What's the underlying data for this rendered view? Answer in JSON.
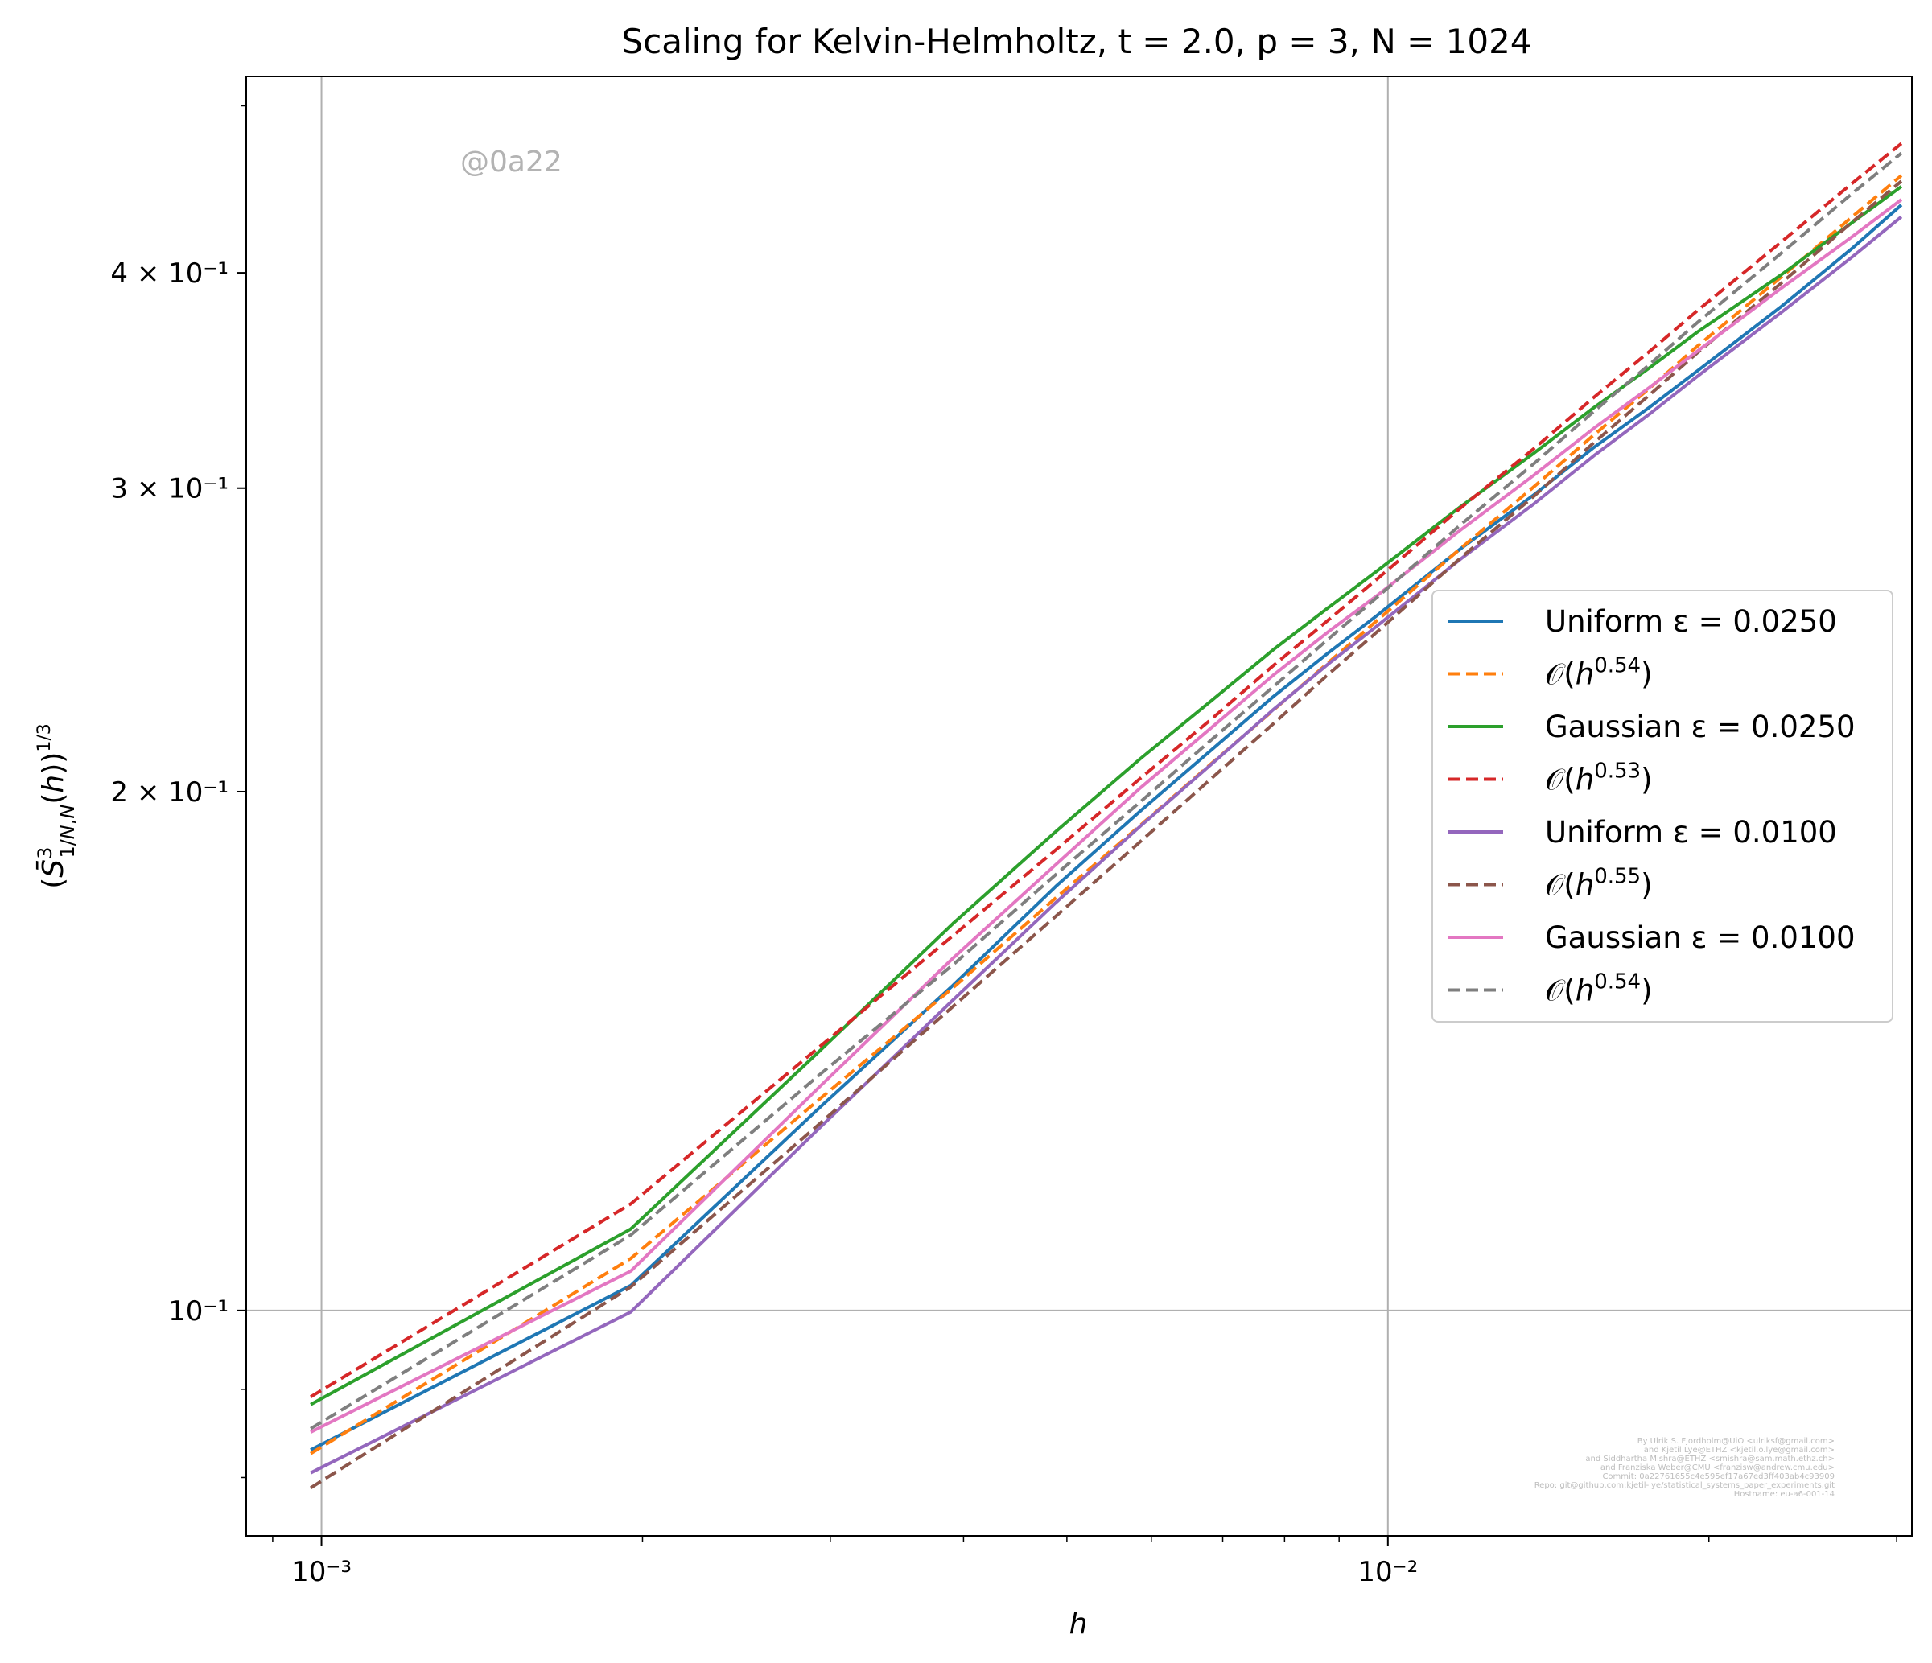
{
  "chart_data": {
    "type": "line",
    "title": "Scaling for Kelvin-Helmholtz, t = 2.0, p = 3, N = 1024",
    "xlabel": "h",
    "ylabel": "(S̄³_{1/N,N}(h))^{1/3}",
    "xscale": "log",
    "yscale": "log",
    "xlim": [
      0.00085,
      0.031
    ],
    "ylim": [
      0.074,
      0.52
    ],
    "grid": "major",
    "legend_position": "center-right",
    "x_tick_labels": [
      "10⁻³",
      "10⁻²"
    ],
    "y_tick_labels": [
      "10⁻¹",
      "2 × 10⁻¹",
      "3 × 10⁻¹",
      "4 × 10⁻¹"
    ],
    "watermark": "@0a22",
    "credits": [
      "By Ulrik S. Fjordholm@UiO <ulriksf@gmail.com>",
      "and Kjetil Lye@ETHZ <kjetil.o.lye@gmail.com>",
      "and Siddhartha Mishra@ETHZ <smishra@sam.math.ethz.ch>",
      "and Franziska Weber@CMU <franzisw@andrew.cmu.edu>",
      "Commit: 0a22761655c4e595ef17a67ed3ff403ab4c93909",
      "Repo: git@github.com:kjetil-lye/statistical_systems_paper_experiments.git",
      "Hostname: eu-a6-001-14"
    ],
    "x": [
      0.000977,
      0.00195,
      0.00293,
      0.00391,
      0.00488,
      0.00586,
      0.00684,
      0.00781,
      0.00879,
      0.00977,
      0.0117,
      0.0137,
      0.0156,
      0.0176,
      0.0195,
      0.0234,
      0.0273,
      0.0303
    ],
    "series": [
      {
        "name": "Uniform ε = 0.0250",
        "color": "#1f77b4",
        "dash": "solid",
        "values": [
          0.083,
          0.1034,
          0.1311,
          0.1544,
          0.1762,
          0.1949,
          0.2116,
          0.2271,
          0.2407,
          0.2531,
          0.2767,
          0.2973,
          0.3168,
          0.3343,
          0.3508,
          0.3825,
          0.4137,
          0.438
        ]
      },
      {
        "name": "𝒪(h^0.54)",
        "color": "#ff7f0e",
        "dash": "dashed",
        "values": [
          0.0826,
          0.1072,
          0.1326,
          0.1539,
          0.1735,
          0.1912,
          0.2078,
          0.223,
          0.2376,
          0.2514,
          0.2768,
          0.3005,
          0.3221,
          0.3429,
          0.3626,
          0.3979,
          0.4315,
          0.4555
        ]
      },
      {
        "name": "Gaussian ε = 0.0250",
        "color": "#2ca02c",
        "dash": "solid",
        "values": [
          0.0882,
          0.1115,
          0.1414,
          0.1677,
          0.1896,
          0.209,
          0.226,
          0.2418,
          0.2557,
          0.2686,
          0.2927,
          0.3143,
          0.3341,
          0.3524,
          0.3695,
          0.3991,
          0.4281,
          0.4489
        ]
      },
      {
        "name": "𝒪(h^0.53)",
        "color": "#d62728",
        "dash": "dashed",
        "values": [
          0.0891,
          0.1153,
          0.1422,
          0.165,
          0.185,
          0.2036,
          0.2205,
          0.2367,
          0.2515,
          0.2657,
          0.2922,
          0.3162,
          0.3387,
          0.3602,
          0.3802,
          0.417,
          0.4512,
          0.4754
        ]
      },
      {
        "name": "Uniform ε = 0.0100",
        "color": "#9467bd",
        "dash": "solid",
        "values": [
          0.0805,
          0.0998,
          0.1276,
          0.1514,
          0.1724,
          0.191,
          0.2076,
          0.2232,
          0.2372,
          0.2496,
          0.2729,
          0.2937,
          0.3133,
          0.3313,
          0.3483,
          0.3795,
          0.4089,
          0.4311
        ]
      },
      {
        "name": "𝒪(h^0.55)",
        "color": "#8c564b",
        "dash": "dashed",
        "values": [
          0.0789,
          0.1032,
          0.1283,
          0.1501,
          0.1693,
          0.1871,
          0.2037,
          0.219,
          0.2339,
          0.2476,
          0.2733,
          0.2967,
          0.3188,
          0.3399,
          0.3594,
          0.3947,
          0.4285,
          0.4521
        ]
      },
      {
        "name": "Gaussian ε = 0.0100",
        "color": "#e377c2",
        "dash": "solid",
        "values": [
          0.085,
          0.1054,
          0.1348,
          0.1601,
          0.1814,
          0.201,
          0.218,
          0.2337,
          0.2476,
          0.2599,
          0.2837,
          0.3052,
          0.325,
          0.3433,
          0.3602,
          0.392,
          0.4201,
          0.4411
        ]
      },
      {
        "name": "𝒪(h^0.54)",
        "color": "#7f7f7f",
        "dash": "dashed",
        "values": [
          0.0854,
          0.1106,
          0.137,
          0.1587,
          0.179,
          0.1973,
          0.2145,
          0.2301,
          0.2452,
          0.2593,
          0.2857,
          0.3099,
          0.3324,
          0.354,
          0.3742,
          0.4108,
          0.4451,
          0.4693
        ]
      }
    ]
  }
}
